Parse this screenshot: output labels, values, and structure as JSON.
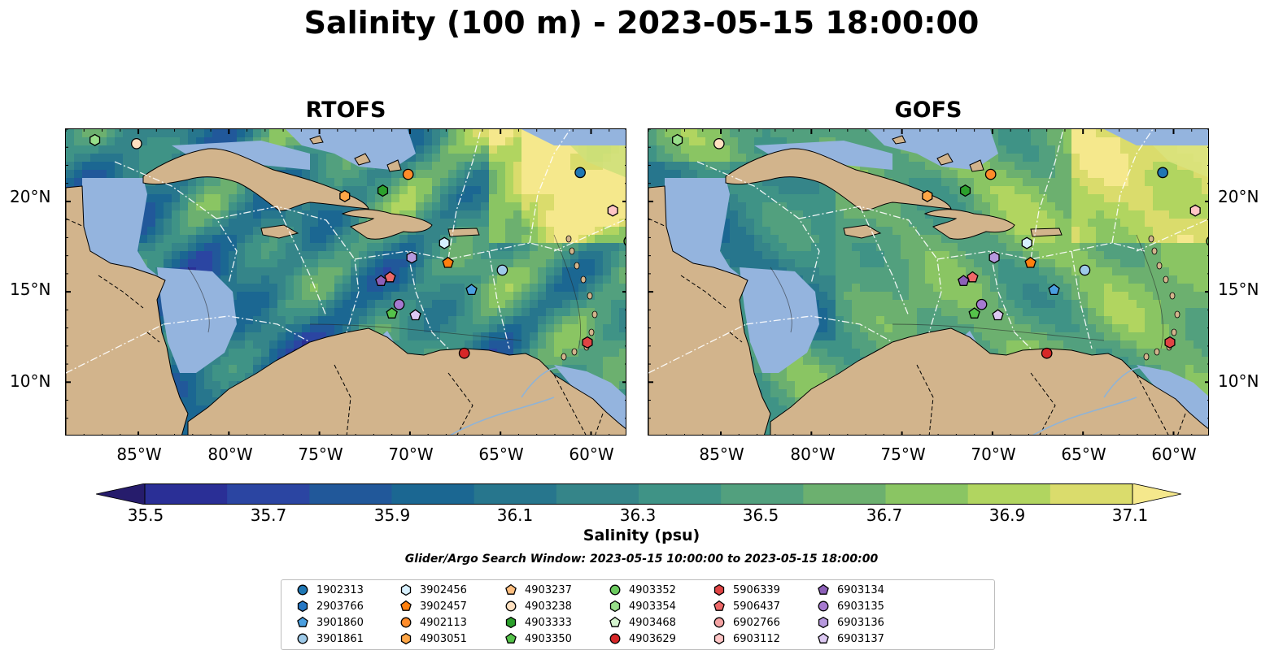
{
  "title": "Salinity (100 m) - 2023-05-15 18:00:00",
  "panels": [
    {
      "title": "RTOFS",
      "model": "rtofs"
    },
    {
      "title": "GOFS",
      "model": "gofs"
    }
  ],
  "map": {
    "lon_range": [
      -89,
      -58
    ],
    "lat_range": [
      7,
      24
    ],
    "x_ticks": [
      "85°W",
      "80°W",
      "75°W",
      "70°W",
      "65°W",
      "60°W"
    ],
    "x_tick_values": [
      -85,
      -80,
      -75,
      -70,
      -65,
      -60
    ],
    "y_ticks": [
      "20°N",
      "15°N",
      "10°N"
    ],
    "y_tick_values": [
      20,
      15,
      10
    ],
    "colors": {
      "land": "#d2b48c",
      "shallow": "#94b4de",
      "deep_low": "#2a1d6b"
    }
  },
  "colorbar": {
    "label": "Salinity (psu)",
    "ticks": [
      "35.5",
      "35.7",
      "35.9",
      "36.1",
      "36.3",
      "36.5",
      "36.7",
      "36.9",
      "37.1"
    ],
    "tick_values": [
      35.5,
      35.7,
      35.9,
      36.1,
      36.3,
      36.5,
      36.7,
      36.9,
      37.1
    ],
    "range": [
      35.4,
      37.2
    ],
    "colors": [
      "#261c6c",
      "#2a2f96",
      "#2b45a2",
      "#21589a",
      "#1b6792",
      "#27768d",
      "#358589",
      "#3f9386",
      "#52a07e",
      "#6cb06f",
      "#8ac563",
      "#b1d560",
      "#dadc6c",
      "#f5e88c"
    ]
  },
  "search_window": "Glider/Argo Search Window: 2023-05-15 10:00:00 to 2023-05-15 18:00:00",
  "markers": [
    {
      "id": "1902313",
      "shape": "circle",
      "color": "#1f77b4",
      "lon": -60.6,
      "lat": 21.6
    },
    {
      "id": "2903766",
      "shape": "hexagon",
      "color": "#2678c5",
      "lon": null,
      "lat": null
    },
    {
      "id": "3901860",
      "shape": "pentagon",
      "color": "#4a9fe0",
      "lon": -66.6,
      "lat": 15.1
    },
    {
      "id": "3901861",
      "shape": "circle",
      "color": "#9ecae9",
      "lon": -64.9,
      "lat": 16.2
    },
    {
      "id": "3902456",
      "shape": "hexagon",
      "color": "#d7f0ff",
      "lon": -68.1,
      "lat": 17.7
    },
    {
      "id": "3902457",
      "shape": "pentagon",
      "color": "#ff7f0e",
      "lon": -67.9,
      "lat": 16.6
    },
    {
      "id": "4902113",
      "shape": "circle",
      "color": "#ff8c2a",
      "lon": -70.1,
      "lat": 21.5
    },
    {
      "id": "4903051",
      "shape": "hexagon",
      "color": "#ffa646",
      "lon": -73.6,
      "lat": 20.3
    },
    {
      "id": "4903237",
      "shape": "pentagon",
      "color": "#ffbf80",
      "lon": null,
      "lat": null
    },
    {
      "id": "4903238",
      "shape": "circle",
      "color": "#ffe0c0",
      "lon": -85.1,
      "lat": 23.2
    },
    {
      "id": "4903333",
      "shape": "hexagon",
      "color": "#2ca02c",
      "lon": -71.5,
      "lat": 20.6
    },
    {
      "id": "4903350",
      "shape": "pentagon",
      "color": "#55c34a",
      "lon": -71.0,
      "lat": 13.8
    },
    {
      "id": "4903352",
      "shape": "circle",
      "color": "#6ccb5f",
      "lon": -57.9,
      "lat": 17.8
    },
    {
      "id": "4903354",
      "shape": "hexagon",
      "color": "#98df8a",
      "lon": -87.4,
      "lat": 23.4
    },
    {
      "id": "4903468",
      "shape": "pentagon",
      "color": "#d5f5cf",
      "lon": null,
      "lat": null
    },
    {
      "id": "4903629",
      "shape": "circle",
      "color": "#d62728",
      "lon": -67.0,
      "lat": 11.6
    },
    {
      "id": "5906339",
      "shape": "hexagon",
      "color": "#e04444",
      "lon": -60.2,
      "lat": 12.2
    },
    {
      "id": "5906437",
      "shape": "pentagon",
      "color": "#ee6868",
      "lon": -71.1,
      "lat": 15.8
    },
    {
      "id": "6902766",
      "shape": "circle",
      "color": "#f4a3a3",
      "lon": null,
      "lat": null
    },
    {
      "id": "6903112",
      "shape": "hexagon",
      "color": "#ffc6c6",
      "lon": -58.8,
      "lat": 19.5
    },
    {
      "id": "6903134",
      "shape": "pentagon",
      "color": "#8c5fb8",
      "lon": -71.6,
      "lat": 15.6
    },
    {
      "id": "6903135",
      "shape": "circle",
      "color": "#a67ad0",
      "lon": -70.6,
      "lat": 14.3
    },
    {
      "id": "6903136",
      "shape": "hexagon",
      "color": "#b799de",
      "lon": -69.9,
      "lat": 16.9
    },
    {
      "id": "6903137",
      "shape": "pentagon",
      "color": "#dcc8f2",
      "lon": -69.7,
      "lat": 13.7
    }
  ]
}
